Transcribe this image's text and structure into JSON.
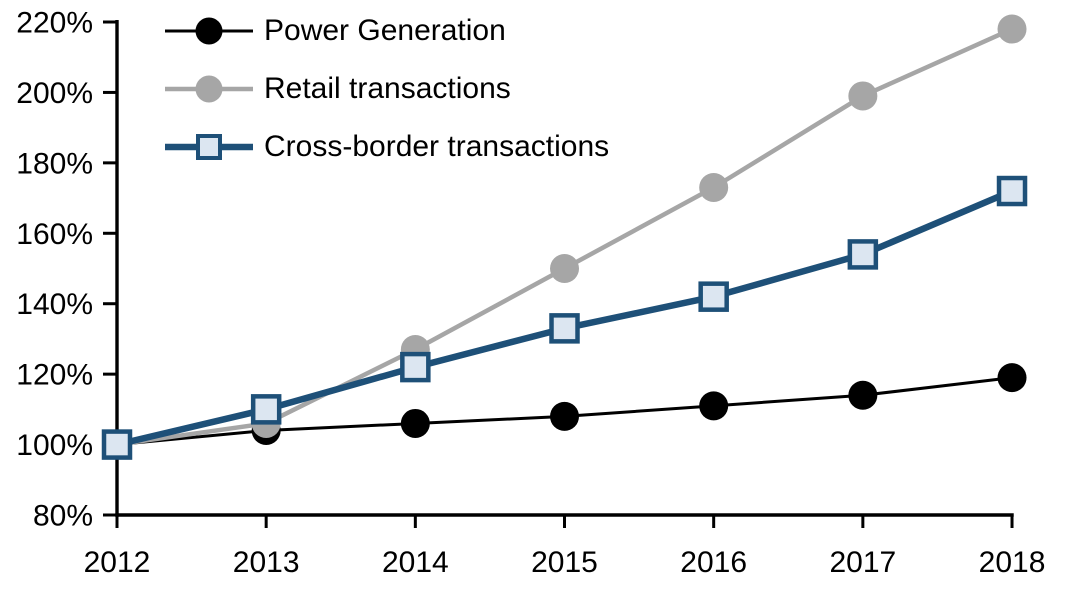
{
  "chart_data": {
    "type": "line",
    "title": "",
    "xlabel": "",
    "ylabel": "",
    "categories": [
      "2012",
      "2013",
      "2014",
      "2015",
      "2016",
      "2017",
      "2018"
    ],
    "y_tick_labels": [
      "80%",
      "100%",
      "120%",
      "140%",
      "160%",
      "180%",
      "200%",
      "220%"
    ],
    "y_range": [
      80,
      220
    ],
    "grid": false,
    "legend_position": "top-left",
    "axis_color": "#000000",
    "series": [
      {
        "name": "Power Generation",
        "color": "#000000",
        "marker": "circle",
        "marker_fill": "#000000",
        "values": [
          100,
          104,
          106,
          108,
          111,
          114,
          119
        ]
      },
      {
        "name": "Retail transactions",
        "color": "#A6A6A6",
        "marker": "circle",
        "marker_fill": "#A6A6A6",
        "values": [
          100,
          106,
          127,
          150,
          173,
          199,
          218
        ]
      },
      {
        "name": "Cross-border transactions",
        "color": "#1E5078",
        "marker": "square",
        "marker_fill": "#DCE6F1",
        "values": [
          100,
          110,
          122,
          133,
          142,
          154,
          172
        ]
      }
    ]
  }
}
